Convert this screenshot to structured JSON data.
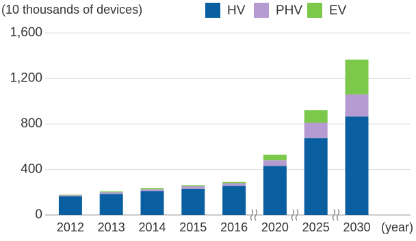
{
  "chart_data": {
    "type": "bar",
    "stacked": true,
    "y_label": "(10 thousands of devices)",
    "x_label": "(year)",
    "categories": [
      "2012",
      "2013",
      "2014",
      "2015",
      "2016",
      "2020",
      "2025",
      "2030"
    ],
    "series": [
      {
        "name": "HV",
        "color": "#0a5fa0",
        "values": [
          165,
          185,
          210,
          230,
          255,
          430,
          675,
          865
        ]
      },
      {
        "name": "PHV",
        "color": "#b59bd1",
        "values": [
          8,
          15,
          17,
          22,
          25,
          50,
          135,
          195
        ]
      },
      {
        "name": "EV",
        "color": "#7cc84a",
        "values": [
          5,
          8,
          8,
          10,
          10,
          50,
          110,
          305
        ]
      }
    ],
    "ylim": [
      0,
      1600
    ],
    "yticks": [
      0,
      400,
      800,
      {
        "value": 1200,
        "label": "1,200"
      },
      {
        "value": 1600,
        "label": "1,600"
      }
    ],
    "grid": true
  }
}
